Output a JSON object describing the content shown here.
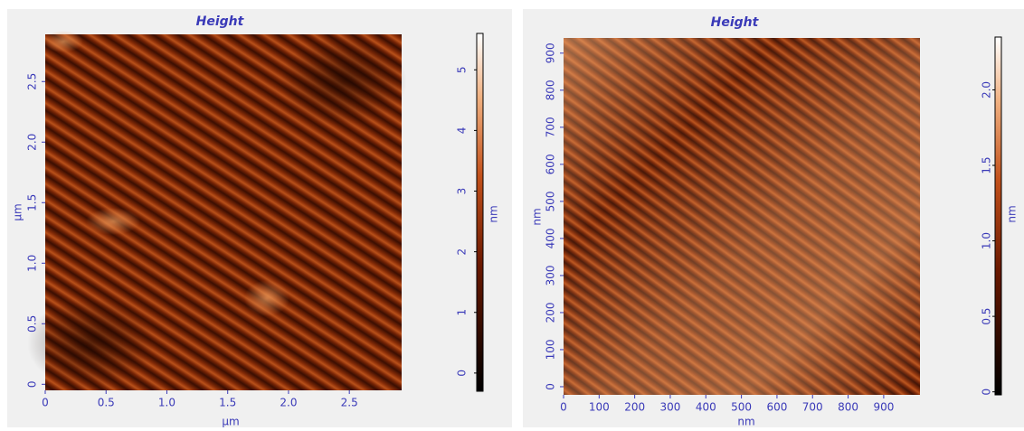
{
  "panels": [
    {
      "title": "Height",
      "x_label": "µm",
      "y_label": "µm",
      "colorbar_label": "nm",
      "xlim": [
        0,
        2.93
      ],
      "ylim": [
        -0.05,
        2.89
      ],
      "colorbar_lim": [
        -0.3,
        5.6
      ],
      "xticks": [
        0,
        0.5,
        {
          "value": 1,
          "label": "1.0"
        },
        1.5,
        {
          "value": 2,
          "label": "2.0"
        },
        2.5
      ],
      "yticks": [
        0,
        0.5,
        {
          "value": 1,
          "label": "1.0"
        },
        1.5,
        {
          "value": 2,
          "label": "2.0"
        },
        2.5
      ],
      "colorbar_ticks": [
        0,
        1,
        2,
        3,
        4,
        5
      ]
    },
    {
      "title": "Height",
      "x_label": "nm",
      "y_label": "nm",
      "colorbar_label": "nm",
      "xlim": [
        0,
        1002
      ],
      "ylim": [
        -22,
        941
      ],
      "colorbar_lim": [
        -0.02,
        2.35
      ],
      "xticks": [
        0,
        100,
        200,
        300,
        400,
        500,
        600,
        700,
        800,
        900
      ],
      "yticks": [
        0,
        100,
        200,
        300,
        400,
        500,
        600,
        700,
        800,
        900
      ],
      "colorbar_ticks": [
        0,
        0.5,
        {
          "value": 1,
          "label": "1.0"
        },
        1.5,
        {
          "value": 2,
          "label": "2.0"
        }
      ]
    }
  ]
}
